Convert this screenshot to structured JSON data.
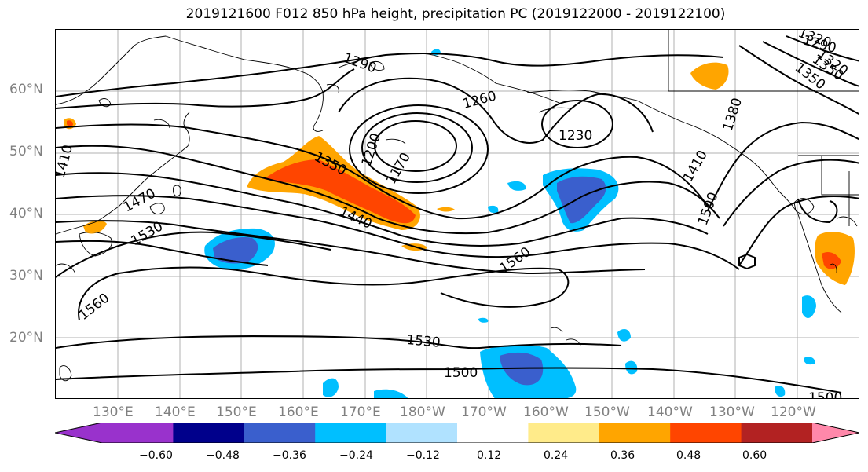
{
  "title": "2019121600 F012 850 hPa height, precipitation PC (2019122000 - 2019122100)",
  "lat_labels": [
    "60°N",
    "50°N",
    "40°N",
    "30°N",
    "20°N"
  ],
  "lon_labels": [
    "130°E",
    "140°E",
    "150°E",
    "160°E",
    "170°E",
    "180°W",
    "170°W",
    "160°W",
    "150°W",
    "140°W",
    "130°W",
    "120°W"
  ],
  "contour_labels": [
    "1290",
    "1320",
    "1350",
    "1410",
    "1470",
    "1530",
    "1560",
    "1260",
    "1200",
    "1230",
    "1170",
    "1350",
    "1440",
    "1410",
    "1500",
    "1560",
    "1530",
    "1500",
    "1380",
    "1290",
    "1320",
    "1350",
    "1500"
  ],
  "colorbar": {
    "ticks": [
      "−0.60",
      "−0.48",
      "−0.36",
      "−0.24",
      "−0.12",
      "0.12",
      "0.24",
      "0.36",
      "0.48",
      "0.60"
    ],
    "colors": [
      "#9932cc",
      "#00008b",
      "#3a5fcd",
      "#00bfff",
      "#b0e2ff",
      "#ffffff",
      "#ffeb8a",
      "#ffa500",
      "#ff4500",
      "#b22222",
      "#ff88aa"
    ]
  }
}
